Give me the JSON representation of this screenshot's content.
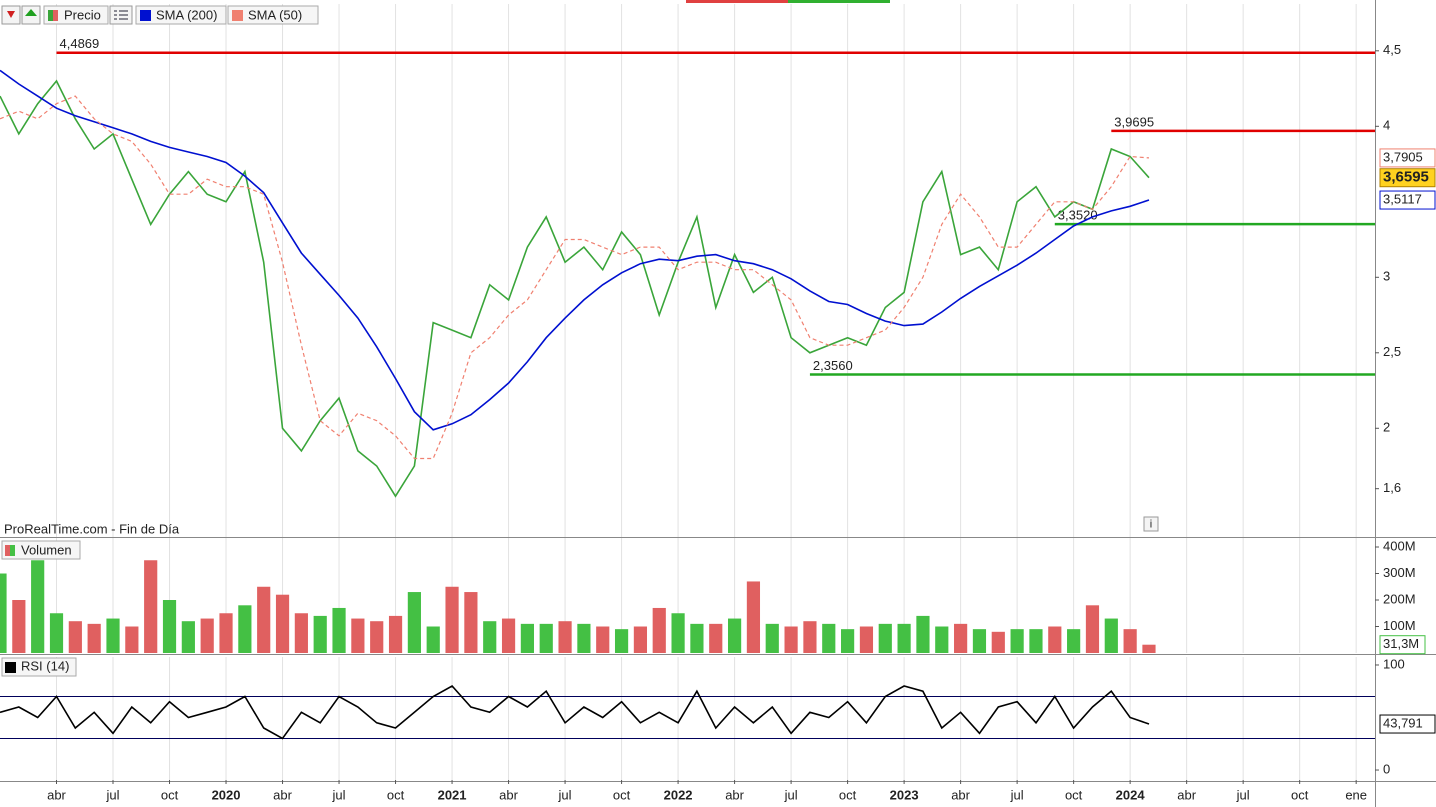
{
  "chart_data": [
    {
      "type": "line",
      "source": "ProRealTime.com - Fin de Día",
      "xlim": [
        "2019-01",
        "2025-02"
      ],
      "x": [
        "2019-01",
        "2019-02",
        "2019-03",
        "2019-04",
        "2019-05",
        "2019-06",
        "2019-07",
        "2019-08",
        "2019-09",
        "2019-10",
        "2019-11",
        "2019-12",
        "2020-01",
        "2020-02",
        "2020-03",
        "2020-04",
        "2020-05",
        "2020-06",
        "2020-07",
        "2020-08",
        "2020-09",
        "2020-10",
        "2020-11",
        "2020-12",
        "2021-01",
        "2021-02",
        "2021-03",
        "2021-04",
        "2021-05",
        "2021-06",
        "2021-07",
        "2021-08",
        "2021-09",
        "2021-10",
        "2021-11",
        "2021-12",
        "2022-01",
        "2022-02",
        "2022-03",
        "2022-04",
        "2022-05",
        "2022-06",
        "2022-07",
        "2022-08",
        "2022-09",
        "2022-10",
        "2022-11",
        "2022-12",
        "2023-01",
        "2023-02",
        "2023-03",
        "2023-04",
        "2023-05",
        "2023-06",
        "2023-07",
        "2023-08",
        "2023-09",
        "2023-10",
        "2023-11",
        "2023-12",
        "2024-01",
        "2024-02"
      ],
      "series": [
        {
          "name": "Precio",
          "color": "#3aa53a",
          "tag_fill": "#ffd21f",
          "last_label": "3,6595",
          "values": [
            4.2,
            3.95,
            4.15,
            4.3,
            4.05,
            3.85,
            3.95,
            3.65,
            3.35,
            3.55,
            3.7,
            3.55,
            3.5,
            3.7,
            3.1,
            2.0,
            1.85,
            2.05,
            2.2,
            1.85,
            1.75,
            1.55,
            1.75,
            2.7,
            2.65,
            2.6,
            2.95,
            2.85,
            3.2,
            3.4,
            3.1,
            3.2,
            3.05,
            3.3,
            3.15,
            2.75,
            3.1,
            3.4,
            2.8,
            3.15,
            2.9,
            3.0,
            2.6,
            2.5,
            2.55,
            2.6,
            2.55,
            2.8,
            2.9,
            3.5,
            3.7,
            3.15,
            3.2,
            3.05,
            3.5,
            3.6,
            3.4,
            3.5,
            3.45,
            3.85,
            3.8,
            3.6595
          ]
        },
        {
          "name": "SMA (200)",
          "color": "#0010d0",
          "last_label": "3,5117",
          "values": [
            4.37,
            4.28,
            4.2,
            4.12,
            4.07,
            4.03,
            3.99,
            3.95,
            3.9,
            3.86,
            3.83,
            3.8,
            3.76,
            3.67,
            3.56,
            3.36,
            3.16,
            3.02,
            2.88,
            2.73,
            2.54,
            2.33,
            2.11,
            1.99,
            2.03,
            2.09,
            2.19,
            2.3,
            2.44,
            2.6,
            2.73,
            2.85,
            2.95,
            3.03,
            3.09,
            3.12,
            3.11,
            3.14,
            3.15,
            3.11,
            3.09,
            3.05,
            2.99,
            2.91,
            2.84,
            2.82,
            2.76,
            2.71,
            2.68,
            2.69,
            2.77,
            2.86,
            2.94,
            3.01,
            3.08,
            3.16,
            3.25,
            3.34,
            3.4,
            3.44,
            3.47,
            3.5117
          ]
        },
        {
          "name": "SMA (50)",
          "color": "#f08070",
          "dash": true,
          "last_label": "3,7905",
          "values": [
            4.05,
            4.1,
            4.05,
            4.15,
            4.2,
            4.05,
            3.95,
            3.9,
            3.75,
            3.55,
            3.55,
            3.65,
            3.6,
            3.6,
            3.55,
            3.1,
            2.55,
            2.05,
            1.95,
            2.1,
            2.05,
            1.95,
            1.8,
            1.8,
            2.1,
            2.5,
            2.6,
            2.75,
            2.85,
            3.05,
            3.25,
            3.25,
            3.2,
            3.15,
            3.2,
            3.2,
            3.05,
            3.1,
            3.1,
            3.05,
            3.05,
            2.95,
            2.85,
            2.6,
            2.55,
            2.55,
            2.6,
            2.65,
            2.8,
            3.0,
            3.35,
            3.55,
            3.4,
            3.2,
            3.2,
            3.35,
            3.5,
            3.5,
            3.45,
            3.6,
            3.8,
            3.7905
          ]
        }
      ],
      "levels": [
        {
          "value": 4.4869,
          "label": "4,4869",
          "color": "#e00000",
          "from": "2019-04"
        },
        {
          "value": 3.9695,
          "label": "3,9695",
          "color": "#e00000",
          "from": "2023-12"
        },
        {
          "value": 3.352,
          "label": "3,3520",
          "color": "#22a822",
          "from": "2023-09"
        },
        {
          "value": 2.356,
          "label": "2,3560",
          "color": "#22a822",
          "from": "2022-08"
        }
      ],
      "ylim": [
        1.28,
        4.81
      ],
      "yticks": [
        {
          "value": 4.5,
          "label": "4,5"
        },
        4,
        3,
        {
          "value": 2.5,
          "label": "2,5"
        },
        2,
        {
          "value": 1.6,
          "label": "1,6"
        }
      ]
    },
    {
      "type": "bar",
      "name": "Volumen",
      "color_up": "#44c044",
      "color_down": "#e06060",
      "last_label": "31,3M",
      "xlim": [
        "2019-01",
        "2025-02"
      ],
      "x": [
        "2019-01",
        "2019-02",
        "2019-03",
        "2019-04",
        "2019-05",
        "2019-06",
        "2019-07",
        "2019-08",
        "2019-09",
        "2019-10",
        "2019-11",
        "2019-12",
        "2020-01",
        "2020-02",
        "2020-03",
        "2020-04",
        "2020-05",
        "2020-06",
        "2020-07",
        "2020-08",
        "2020-09",
        "2020-10",
        "2020-11",
        "2020-12",
        "2021-01",
        "2021-02",
        "2021-03",
        "2021-04",
        "2021-05",
        "2021-06",
        "2021-07",
        "2021-08",
        "2021-09",
        "2021-10",
        "2021-11",
        "2021-12",
        "2022-01",
        "2022-02",
        "2022-03",
        "2022-04",
        "2022-05",
        "2022-06",
        "2022-07",
        "2022-08",
        "2022-09",
        "2022-10",
        "2022-11",
        "2022-12",
        "2023-01",
        "2023-02",
        "2023-03",
        "2023-04",
        "2023-05",
        "2023-06",
        "2023-07",
        "2023-08",
        "2023-09",
        "2023-10",
        "2023-11",
        "2023-12",
        "2024-01",
        "2024-02"
      ],
      "values": [
        300000000.0,
        200000000.0,
        350000000.0,
        150000000.0,
        120000000.0,
        110000000.0,
        130000000.0,
        100000000.0,
        350000000.0,
        200000000.0,
        120000000.0,
        130000000.0,
        150000000.0,
        180000000.0,
        250000000.0,
        220000000.0,
        150000000.0,
        140000000.0,
        170000000.0,
        130000000.0,
        120000000.0,
        140000000.0,
        230000000.0,
        100000000.0,
        250000000.0,
        230000000.0,
        120000000.0,
        130000000.0,
        110000000.0,
        110000000.0,
        120000000.0,
        110000000.0,
        100000000.0,
        90000000.0,
        100000000.0,
        170000000.0,
        150000000.0,
        110000000.0,
        110000000.0,
        130000000.0,
        270000000.0,
        110000000.0,
        100000000.0,
        120000000.0,
        110000000.0,
        90000000.0,
        100000000.0,
        110000000.0,
        110000000.0,
        140000000.0,
        100000000.0,
        110000000.0,
        90000000.0,
        80000000.0,
        90000000.0,
        90000000.0,
        100000000.0,
        90000000.0,
        180000000.0,
        130000000.0,
        90000000.0,
        31300000.0
      ],
      "ylim": [
        0,
        434000000
      ],
      "yticks": [
        {
          "value": 400000000,
          "label": "400M"
        },
        {
          "value": 300000000,
          "label": "300M"
        },
        {
          "value": 200000000,
          "label": "200M"
        },
        {
          "value": 100000000,
          "label": "100M"
        }
      ]
    },
    {
      "type": "line",
      "xlim": [
        "2019-01",
        "2025-02"
      ],
      "x": [
        "2019-01",
        "2019-02",
        "2019-03",
        "2019-04",
        "2019-05",
        "2019-06",
        "2019-07",
        "2019-08",
        "2019-09",
        "2019-10",
        "2019-11",
        "2019-12",
        "2020-01",
        "2020-02",
        "2020-03",
        "2020-04",
        "2020-05",
        "2020-06",
        "2020-07",
        "2020-08",
        "2020-09",
        "2020-10",
        "2020-11",
        "2020-12",
        "2021-01",
        "2021-02",
        "2021-03",
        "2021-04",
        "2021-05",
        "2021-06",
        "2021-07",
        "2021-08",
        "2021-09",
        "2021-10",
        "2021-11",
        "2021-12",
        "2022-01",
        "2022-02",
        "2022-03",
        "2022-04",
        "2022-05",
        "2022-06",
        "2022-07",
        "2022-08",
        "2022-09",
        "2022-10",
        "2022-11",
        "2022-12",
        "2023-01",
        "2023-02",
        "2023-03",
        "2023-04",
        "2023-05",
        "2023-06",
        "2023-07",
        "2023-08",
        "2023-09",
        "2023-10",
        "2023-11",
        "2023-12",
        "2024-01",
        "2024-02"
      ],
      "series": [
        {
          "name": "RSI (14)",
          "color": "#000000",
          "last_label": "43,791",
          "values": [
            55,
            60,
            50,
            70,
            40,
            55,
            35,
            60,
            45,
            65,
            50,
            55,
            60,
            70,
            40,
            30,
            55,
            45,
            70,
            60,
            45,
            40,
            55,
            70,
            80,
            60,
            55,
            70,
            60,
            75,
            45,
            60,
            50,
            65,
            45,
            55,
            45,
            75,
            40,
            60,
            45,
            60,
            35,
            55,
            50,
            65,
            45,
            70,
            80,
            75,
            40,
            55,
            35,
            60,
            65,
            45,
            70,
            40,
            60,
            75,
            50,
            43.791
          ]
        }
      ],
      "levels": [
        {
          "value": 70,
          "color": "#00005a"
        },
        {
          "value": 30,
          "color": "#00005a"
        }
      ],
      "ylim": [
        -9.5,
        107.6
      ],
      "yticks": [
        100,
        0
      ],
      "xticks": [
        {
          "value": "2019-04",
          "label": "abr"
        },
        {
          "value": "2019-07",
          "label": "jul"
        },
        {
          "value": "2019-10",
          "label": "oct"
        },
        {
          "value": "2020-01",
          "label": "2020"
        },
        {
          "value": "2020-04",
          "label": "abr"
        },
        {
          "value": "2020-07",
          "label": "jul"
        },
        {
          "value": "2020-10",
          "label": "oct"
        },
        {
          "value": "2021-01",
          "label": "2021"
        },
        {
          "value": "2021-04",
          "label": "abr"
        },
        {
          "value": "2021-07",
          "label": "jul"
        },
        {
          "value": "2021-10",
          "label": "oct"
        },
        {
          "value": "2022-01",
          "label": "2022"
        },
        {
          "value": "2022-04",
          "label": "abr"
        },
        {
          "value": "2022-07",
          "label": "jul"
        },
        {
          "value": "2022-10",
          "label": "oct"
        },
        {
          "value": "2023-01",
          "label": "2023"
        },
        {
          "value": "2023-04",
          "label": "abr"
        },
        {
          "value": "2023-07",
          "label": "jul"
        },
        {
          "value": "2023-10",
          "label": "oct"
        },
        {
          "value": "2024-01",
          "label": "2024"
        },
        {
          "value": "2024-04",
          "label": "abr"
        },
        {
          "value": "2024-07",
          "label": "jul"
        },
        {
          "value": "2024-10",
          "label": "oct"
        },
        {
          "value": "2025-01",
          "label": "ene"
        }
      ]
    }
  ]
}
